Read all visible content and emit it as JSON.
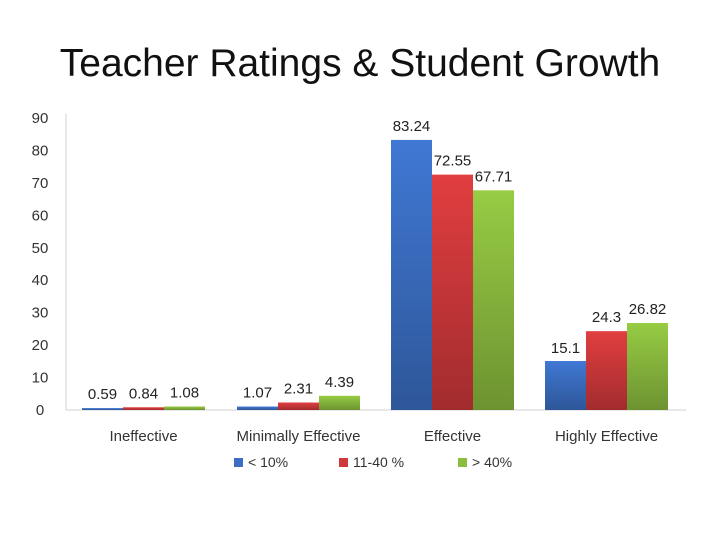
{
  "chart_data": {
    "type": "bar",
    "title": "Teacher Ratings & Student Growth",
    "xlabel": "",
    "ylabel": "",
    "ylim": [
      0,
      90
    ],
    "yticks": [
      0,
      10,
      20,
      30,
      40,
      50,
      60,
      70,
      80,
      90
    ],
    "grid": false,
    "legend_position": "bottom",
    "categories": [
      "Ineffective",
      "Minimally Effective",
      "Effective",
      "Highly Effective"
    ],
    "series": [
      {
        "name": "< 10%",
        "color": "#3b6fc4",
        "values": [
          0.59,
          1.07,
          83.24,
          15.1
        ],
        "labels": [
          "0.59",
          "1.07",
          "83.24",
          "15.1"
        ]
      },
      {
        "name": "11-40 %",
        "color": "#d0393b",
        "values": [
          0.84,
          2.31,
          72.55,
          24.3
        ],
        "labels": [
          "0.84",
          "2.31",
          "72.55",
          "24.3"
        ]
      },
      {
        "name": "> 40%",
        "color": "#8cbd3f",
        "values": [
          1.08,
          4.39,
          67.71,
          26.82
        ],
        "labels": [
          "1.08",
          "4.39",
          "67.71",
          "26.82"
        ]
      }
    ]
  }
}
